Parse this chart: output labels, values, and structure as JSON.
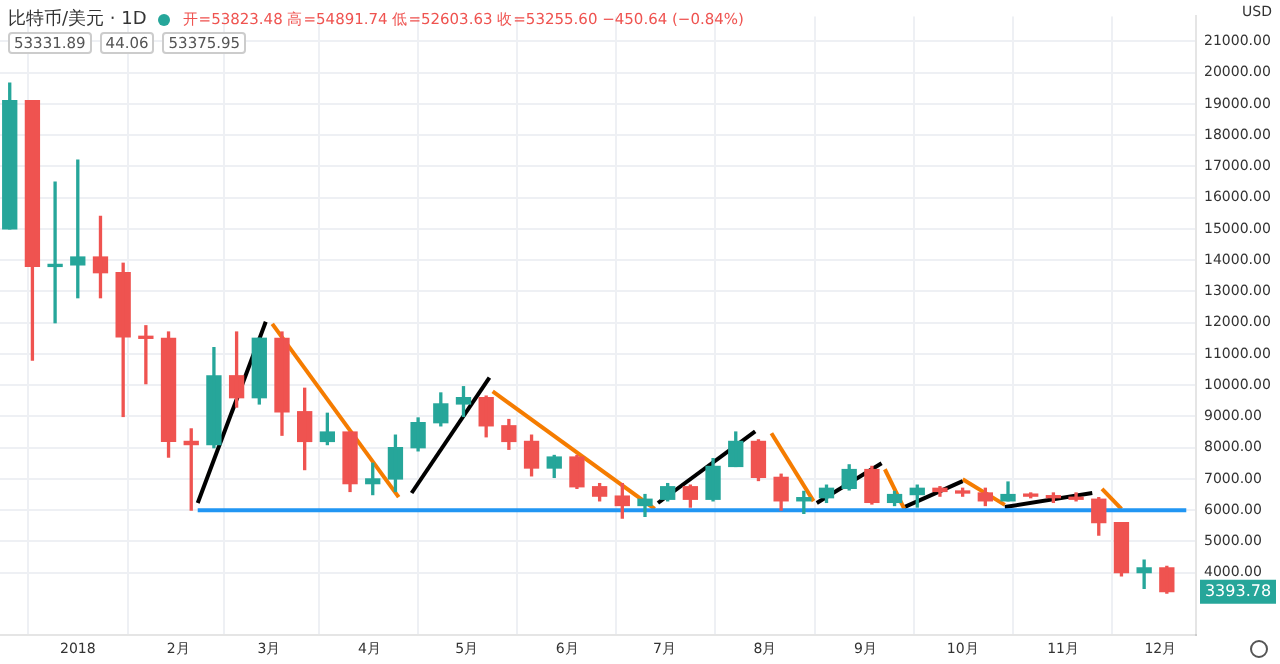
{
  "chart_data": {
    "type": "candlestick",
    "title": "比特币/美元 · 1D",
    "ylabel": "USD",
    "annotations": [
      "开=53823.48 高=54891.74 低=52603.63 收=53255.60 −450.64 (−0.84%)",
      "53331.89",
      "44.06",
      "53375.95",
      {
        "text": "3393.78",
        "y": 3393.78
      }
    ],
    "x": [
      "2017-12-11",
      "2017-12-18",
      "2017-12-25",
      "2018-01-01",
      "2018-01-08",
      "2018-01-15",
      "2018-01-22",
      "2018-01-29",
      "2018-02-05",
      "2018-02-12",
      "2018-02-19",
      "2018-02-26",
      "2018-03-05",
      "2018-03-12",
      "2018-03-19",
      "2018-03-26",
      "2018-04-02",
      "2018-04-09",
      "2018-04-16",
      "2018-04-23",
      "2018-04-30",
      "2018-05-07",
      "2018-05-14",
      "2018-05-21",
      "2018-05-28",
      "2018-06-04",
      "2018-06-11",
      "2018-06-18",
      "2018-06-25",
      "2018-07-02",
      "2018-07-09",
      "2018-07-16",
      "2018-07-23",
      "2018-07-30",
      "2018-08-06",
      "2018-08-13",
      "2018-08-20",
      "2018-08-27",
      "2018-09-03",
      "2018-09-10",
      "2018-09-17",
      "2018-09-24",
      "2018-10-01",
      "2018-10-08",
      "2018-10-15",
      "2018-10-22",
      "2018-10-29",
      "2018-11-05",
      "2018-11-12",
      "2018-11-19",
      "2018-11-26",
      "2018-12-03"
    ],
    "ohlc": [
      [
        15000,
        19666,
        15000,
        19100
      ],
      [
        19100,
        19100,
        10800,
        13800
      ],
      [
        13800,
        16500,
        12000,
        13850
      ],
      [
        13850,
        17200,
        12800,
        14100
      ],
      [
        14100,
        15400,
        12800,
        13600
      ],
      [
        13600,
        13900,
        9000,
        11550
      ],
      [
        11550,
        11900,
        10050,
        11500
      ],
      [
        11500,
        11700,
        7700,
        8200
      ],
      [
        8200,
        8600,
        6000,
        8100
      ],
      [
        8100,
        11200,
        8000,
        10300
      ],
      [
        10300,
        11700,
        9300,
        9600
      ],
      [
        9600,
        11500,
        9400,
        11500
      ],
      [
        11500,
        11700,
        8400,
        9150
      ],
      [
        9150,
        9900,
        7300,
        8200
      ],
      [
        8200,
        9100,
        8100,
        8500
      ],
      [
        8500,
        8500,
        6600,
        6850
      ],
      [
        6850,
        7500,
        6500,
        7000
      ],
      [
        7000,
        8400,
        6600,
        8000
      ],
      [
        8000,
        8950,
        7900,
        8800
      ],
      [
        8800,
        9750,
        8700,
        9400
      ],
      [
        9400,
        9950,
        9000,
        9600
      ],
      [
        9600,
        9650,
        8350,
        8700
      ],
      [
        8700,
        8900,
        7950,
        8200
      ],
      [
        8200,
        8400,
        7100,
        7350
      ],
      [
        7350,
        7750,
        7050,
        7700
      ],
      [
        7700,
        7750,
        6700,
        6750
      ],
      [
        6750,
        6850,
        6300,
        6450
      ],
      [
        6450,
        6850,
        5750,
        6150
      ],
      [
        6150,
        6500,
        5800,
        6350
      ],
      [
        6350,
        6850,
        6300,
        6750
      ],
      [
        6750,
        6800,
        6100,
        6350
      ],
      [
        6350,
        7650,
        6300,
        7400
      ],
      [
        7400,
        8500,
        7400,
        8200
      ],
      [
        8200,
        8250,
        6950,
        7050
      ],
      [
        7050,
        7150,
        6000,
        6300
      ],
      [
        6300,
        6600,
        5900,
        6400
      ],
      [
        6400,
        6800,
        6250,
        6700
      ],
      [
        6700,
        7450,
        6650,
        7300
      ],
      [
        7300,
        7400,
        6200,
        6250
      ],
      [
        6250,
        6600,
        6150,
        6500
      ],
      [
        6500,
        6800,
        6100,
        6700
      ],
      [
        6700,
        6750,
        6450,
        6600
      ],
      [
        6600,
        6700,
        6450,
        6550
      ],
      [
        6550,
        6700,
        6150,
        6300
      ],
      [
        6300,
        6900,
        6300,
        6500
      ],
      [
        6500,
        6550,
        6400,
        6450
      ],
      [
        6450,
        6550,
        6250,
        6400
      ],
      [
        6400,
        6550,
        6300,
        6350
      ],
      [
        6350,
        6400,
        5200,
        5600
      ],
      [
        5600,
        5600,
        3900,
        4000
      ],
      [
        4000,
        4400,
        3500,
        4150
      ],
      [
        4150,
        4200,
        3350,
        3394
      ]
    ],
    "colors": [
      "#26a69a",
      "#ef5350",
      "#26a69a",
      "#26a69a",
      "#ef5350",
      "#ef5350",
      "#ef5350",
      "#ef5350",
      "#ef5350",
      "#26a69a",
      "#ef5350",
      "#26a69a",
      "#ef5350",
      "#ef5350",
      "#26a69a",
      "#ef5350",
      "#26a69a",
      "#26a69a",
      "#26a69a",
      "#26a69a",
      "#26a69a",
      "#ef5350",
      "#ef5350",
      "#ef5350",
      "#26a69a",
      "#ef5350",
      "#ef5350",
      "#ef5350",
      "#26a69a",
      "#26a69a",
      "#ef5350",
      "#26a69a",
      "#26a69a",
      "#ef5350",
      "#ef5350",
      "#26a69a",
      "#26a69a",
      "#26a69a",
      "#ef5350",
      "#26a69a",
      "#26a69a",
      "#ef5350",
      "#ef5350",
      "#ef5350",
      "#26a69a",
      "#ef5350",
      "#ef5350",
      "#ef5350",
      "#ef5350",
      "#ef5350",
      "#26a69a",
      "#ef5350"
    ],
    "series": [
      {
        "type": "line",
        "color": "#2196f3",
        "x": [
          "2018-02-07",
          "2018-12-09"
        ],
        "values": [
          6000,
          6000
        ]
      },
      {
        "type": "line",
        "color": "#000000",
        "x": [
          "2018-02-07",
          "2018-02-28"
        ],
        "values": [
          6230,
          12030
        ]
      },
      {
        "type": "line",
        "color": "#f57c00",
        "x": [
          "2018-03-02",
          "2018-04-10"
        ],
        "values": [
          11960,
          6420
        ]
      },
      {
        "type": "line",
        "color": "#000000",
        "x": [
          "2018-04-14",
          "2018-05-08"
        ],
        "values": [
          6550,
          10240
        ]
      },
      {
        "type": "line",
        "color": "#f57c00",
        "x": [
          "2018-05-09",
          "2018-06-28"
        ],
        "values": [
          9800,
          6040
        ]
      },
      {
        "type": "line",
        "color": "#000000",
        "x": [
          "2018-06-29",
          "2018-07-29"
        ],
        "values": [
          6230,
          8520
        ]
      },
      {
        "type": "line",
        "color": "#f57c00",
        "x": [
          "2018-08-03",
          "2018-08-16"
        ],
        "values": [
          8460,
          6290
        ]
      },
      {
        "type": "line",
        "color": "#000000",
        "x": [
          "2018-08-17",
          "2018-09-06"
        ],
        "values": [
          6230,
          7500
        ]
      },
      {
        "type": "line",
        "color": "#f57c00",
        "x": [
          "2018-09-07",
          "2018-09-13"
        ],
        "values": [
          7310,
          6040
        ]
      },
      {
        "type": "line",
        "color": "#000000",
        "x": [
          "2018-09-13",
          "2018-10-01"
        ],
        "values": [
          6100,
          6930
        ]
      },
      {
        "type": "line",
        "color": "#f57c00",
        "x": [
          "2018-10-01",
          "2018-10-14"
        ],
        "values": [
          6990,
          6170
        ]
      },
      {
        "type": "line",
        "color": "#000000",
        "x": [
          "2018-10-14",
          "2018-11-10"
        ],
        "values": [
          6100,
          6550
        ]
      },
      {
        "type": "line",
        "color": "#f57c00",
        "x": [
          "2018-11-13",
          "2018-11-19"
        ],
        "values": [
          6680,
          6040
        ]
      }
    ],
    "xlim": [
      "2017-12-08",
      "2018-12-12"
    ],
    "xticks": [
      {
        "value": "2018-01-01",
        "label": "2018"
      },
      {
        "value": "2018-02-01",
        "label": "2月"
      },
      {
        "value": "2018-03-01",
        "label": "3月"
      },
      {
        "value": "2018-04-01",
        "label": "4月"
      },
      {
        "value": "2018-05-01",
        "label": "5月"
      },
      {
        "value": "2018-06-01",
        "label": "6月"
      },
      {
        "value": "2018-07-01",
        "label": "7月"
      },
      {
        "value": "2018-08-01",
        "label": "8月"
      },
      {
        "value": "2018-09-01",
        "label": "9月"
      },
      {
        "value": "2018-10-01",
        "label": "10月"
      },
      {
        "value": "2018-11-01",
        "label": "11月"
      },
      {
        "value": "2018-12-01",
        "label": "12月"
      }
    ],
    "ylim": [
      2000,
      21800
    ],
    "yticks": [
      {
        "value": 4000,
        "label": "4000.00"
      },
      {
        "value": 5000,
        "label": "5000.00"
      },
      {
        "value": 6000,
        "label": "6000.00"
      },
      {
        "value": 7000,
        "label": "7000.00"
      },
      {
        "value": 8000,
        "label": "8000.00"
      },
      {
        "value": 9000,
        "label": "9000.00"
      },
      {
        "value": 10000,
        "label": "10000.00"
      },
      {
        "value": 11000,
        "label": "11000.00"
      },
      {
        "value": 12000,
        "label": "12000.00"
      },
      {
        "value": 13000,
        "label": "13000.00"
      },
      {
        "value": 14000,
        "label": "14000.00"
      },
      {
        "value": 15000,
        "label": "15000.00"
      },
      {
        "value": 16000,
        "label": "16000.00"
      },
      {
        "value": 17000,
        "label": "17000.00"
      },
      {
        "value": 18000,
        "label": "18000.00"
      },
      {
        "value": 19000,
        "label": "19000.00"
      },
      {
        "value": 20000,
        "label": "20000.00"
      },
      {
        "value": 21000,
        "label": "21000.00"
      }
    ],
    "grid": true
  }
}
